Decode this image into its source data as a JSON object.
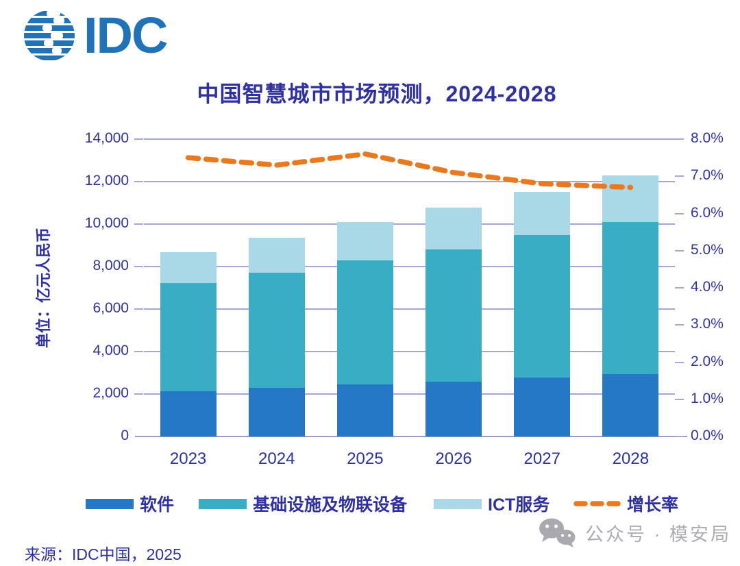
{
  "logo": {
    "text": "IDC"
  },
  "title": "中国智慧城市市场预测，2024-2028",
  "y_axis_label": "单位：亿元人民币",
  "source": "来源：IDC中国，2025",
  "watermark": {
    "icon": "wechat-icon",
    "text": "公众号 · 模安局"
  },
  "colors": {
    "title_text": "#2F31A3",
    "axis_text": "#32339E",
    "gridline": "#A6A6D2",
    "software_bar": "#2478C6",
    "infrastructure_bar": "#38ADC3",
    "ict_bar": "#A9D9E6",
    "growth_line": "#E8791E",
    "logo_blue": "#2173B9",
    "watermark_gray": "#ACACB2"
  },
  "chart_data": {
    "type": "bar",
    "subtype": "stacked-bars-with-line",
    "title": "中国智慧城市市场预测，2024-2028",
    "xlabel": "",
    "ylabel": "单位：亿元人民币",
    "categories": [
      "2023",
      "2024",
      "2025",
      "2026",
      "2027",
      "2028"
    ],
    "series": [
      {
        "name": "软件",
        "type": "bar",
        "color": "#2478C6",
        "values": [
          2130,
          2290,
          2450,
          2580,
          2770,
          2940
        ]
      },
      {
        "name": "基础设施及物联设备",
        "type": "bar",
        "color": "#38ADC3",
        "values": [
          5100,
          5420,
          5840,
          6230,
          6710,
          7160
        ]
      },
      {
        "name": "ICT服务",
        "type": "bar",
        "color": "#A9D9E6",
        "values": [
          1450,
          1650,
          1810,
          1970,
          2040,
          2190
        ]
      },
      {
        "name": "增长率",
        "type": "line",
        "style": "dashed",
        "color": "#E8791E",
        "axis": "right",
        "values": [
          7.5,
          7.3,
          7.6,
          7.1,
          6.8,
          6.7
        ]
      }
    ],
    "stacked_totals": [
      8680,
      9360,
      10100,
      10780,
      11520,
      12290
    ],
    "left_axis": {
      "min": 0,
      "max": 14000,
      "step": 2000,
      "ticks": [
        "0",
        "2,000",
        "4,000",
        "6,000",
        "8,000",
        "10,000",
        "12,000",
        "14,000"
      ]
    },
    "right_axis": {
      "min": 0,
      "max": 8,
      "step": 1,
      "ticks": [
        "0.0%",
        "1.0%",
        "2.0%",
        "3.0%",
        "4.0%",
        "5.0%",
        "6.0%",
        "7.0%",
        "8.0%"
      ]
    },
    "grid": true,
    "legend_position": "bottom"
  }
}
